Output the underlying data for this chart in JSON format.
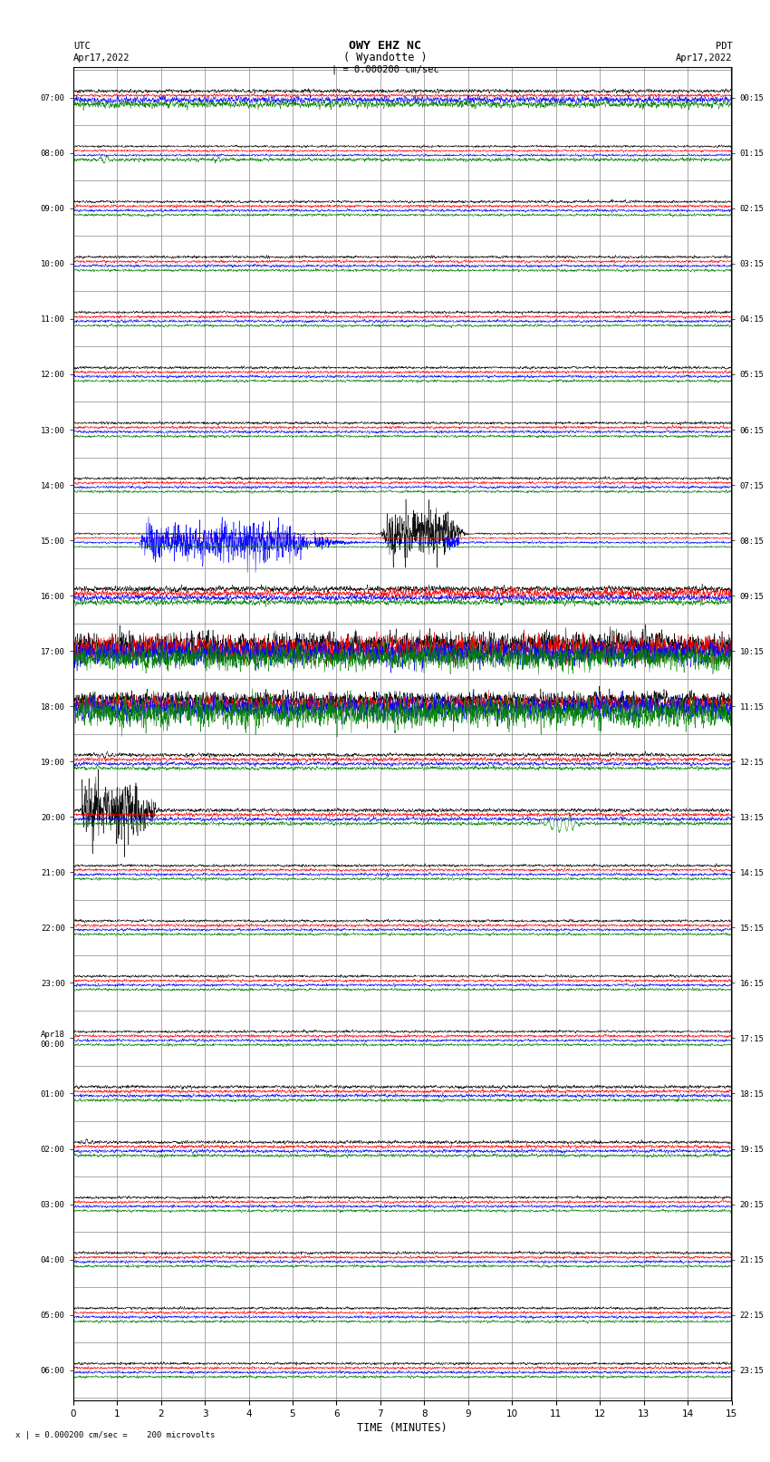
{
  "title_line1": "OWY EHZ NC",
  "title_line2": "( Wyandotte )",
  "scale_label": "| = 0.000200 cm/sec",
  "bottom_label": "x | = 0.000200 cm/sec =    200 microvolts",
  "xlabel": "TIME (MINUTES)",
  "utc_labels": [
    "07:00",
    "08:00",
    "09:00",
    "10:00",
    "11:00",
    "12:00",
    "13:00",
    "14:00",
    "15:00",
    "16:00",
    "17:00",
    "18:00",
    "19:00",
    "20:00",
    "21:00",
    "22:00",
    "23:00",
    "Apr18\n00:00",
    "01:00",
    "02:00",
    "03:00",
    "04:00",
    "05:00",
    "06:00"
  ],
  "pdt_labels": [
    "00:15",
    "01:15",
    "02:15",
    "03:15",
    "04:15",
    "05:15",
    "06:15",
    "07:15",
    "08:15",
    "09:15",
    "10:15",
    "11:15",
    "12:15",
    "13:15",
    "14:15",
    "15:15",
    "16:15",
    "17:15",
    "18:15",
    "19:15",
    "20:15",
    "21:15",
    "22:15",
    "23:15"
  ],
  "background_color": "#ffffff",
  "grid_color": "#888888",
  "trace_colors": [
    "black",
    "red",
    "blue",
    "green"
  ],
  "num_traces": 24,
  "x_min": 0,
  "x_max": 15
}
